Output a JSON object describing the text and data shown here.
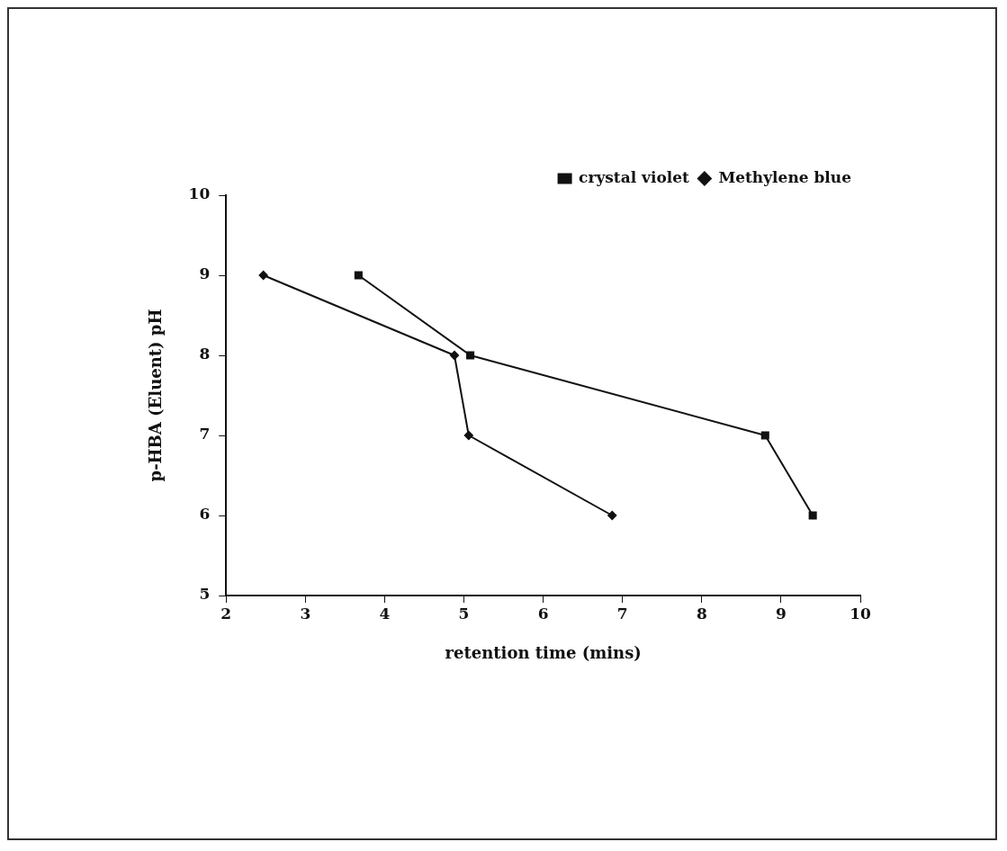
{
  "chart_data": {
    "type": "line",
    "xlabel": "retention time (mins)",
    "ylabel": "p-HBA (Eluent) pH",
    "xlim": [
      2,
      10
    ],
    "xticks": [
      2,
      3,
      4,
      5,
      6,
      7,
      8,
      9,
      10
    ],
    "ylim": [
      5,
      10
    ],
    "yticks": [
      5,
      6,
      7,
      8,
      9,
      10
    ],
    "grid": false,
    "legend": "top right",
    "line_style": "solid",
    "series": [
      {
        "name": "crystal violet",
        "color": "#111111",
        "marker": "square",
        "x": [
          3.67,
          5.08,
          8.8,
          9.4
        ],
        "values": [
          9,
          8,
          7,
          6
        ]
      },
      {
        "name": "Methylene blue",
        "color": "#111111",
        "marker": "diamond",
        "x": [
          2.47,
          4.88,
          5.06,
          6.87
        ],
        "values": [
          9,
          8,
          7,
          6
        ]
      }
    ]
  }
}
